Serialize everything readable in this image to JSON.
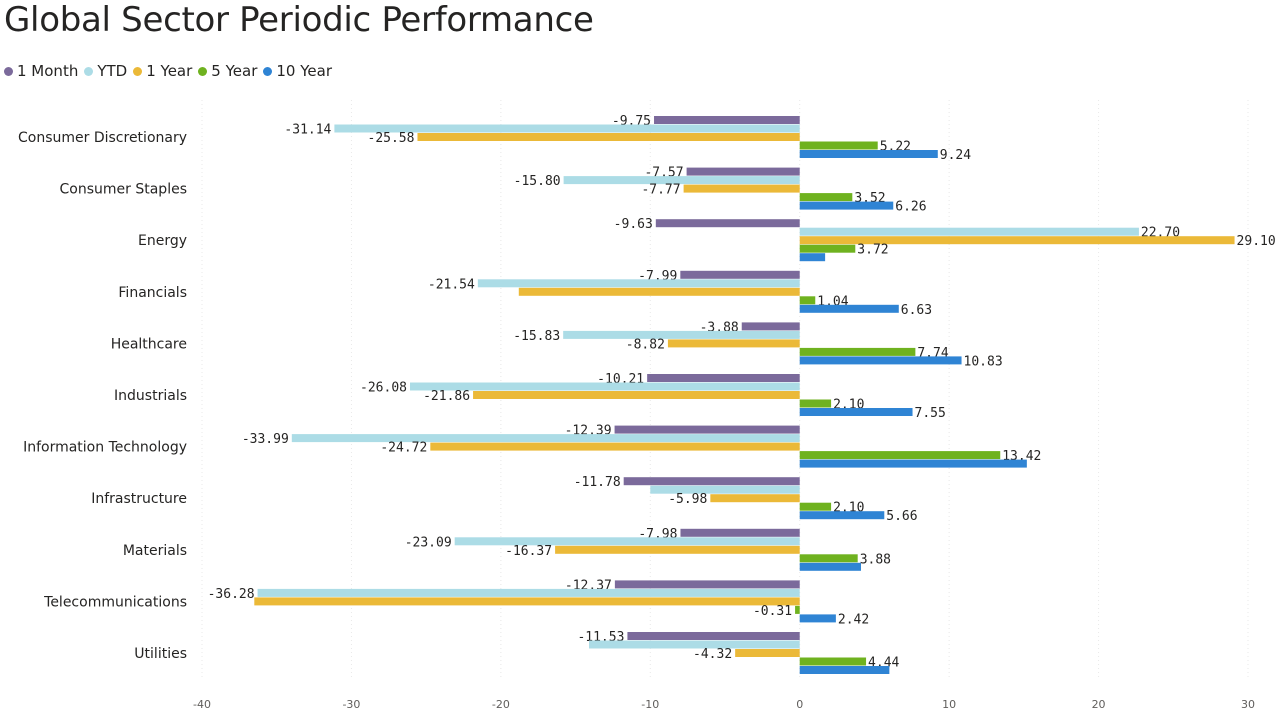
{
  "title": "Global Sector Periodic Performance",
  "chart_data": {
    "type": "bar",
    "orientation": "horizontal",
    "title": "Global Sector Periodic Performance",
    "xlabel": "",
    "ylabel": "",
    "xlim": [
      -40,
      30
    ],
    "xticks": [
      -40,
      -30,
      -20,
      -10,
      0,
      10,
      20,
      30
    ],
    "legend_position": "top-left",
    "grid": true,
    "categories": [
      "Consumer Discretionary",
      "Consumer Staples",
      "Energy",
      "Financials",
      "Healthcare",
      "Industrials",
      "Information Technology",
      "Infrastructure",
      "Materials",
      "Telecommunications",
      "Utilities"
    ],
    "series": [
      {
        "name": "1 Month",
        "color": "#7b6a9b",
        "values": [
          -9.75,
          -7.57,
          -9.63,
          -7.99,
          -3.88,
          -10.21,
          -12.39,
          -11.78,
          -7.98,
          -12.37,
          -11.53
        ],
        "labels": [
          "-9.75",
          "-7.57",
          "-9.63",
          "-7.99",
          "-3.88",
          "-10.21",
          "-12.39",
          "-11.78",
          "-7.98",
          "-12.37",
          "-11.53"
        ]
      },
      {
        "name": "YTD",
        "color": "#acdce6",
        "values": [
          -31.14,
          -15.8,
          22.7,
          -21.54,
          -15.83,
          -26.08,
          -33.99,
          -10.0,
          -23.09,
          -36.28,
          -14.1
        ],
        "labels": [
          "-31.14",
          "-15.80",
          "22.70",
          "-21.54",
          "-15.83",
          "-26.08",
          "-33.99",
          "",
          "-23.09",
          "-36.28",
          ""
        ]
      },
      {
        "name": "1 Year",
        "color": "#ebb938",
        "values": [
          -25.58,
          -7.77,
          29.1,
          -18.8,
          -8.82,
          -21.86,
          -24.72,
          -5.98,
          -16.37,
          -36.5,
          -4.32
        ],
        "labels": [
          "-25.58",
          "-7.77",
          "29.10",
          "",
          "-8.82",
          "-21.86",
          "-24.72",
          "-5.98",
          "-16.37",
          "",
          "-4.32"
        ]
      },
      {
        "name": "5 Year",
        "color": "#6fb21f",
        "values": [
          5.22,
          3.52,
          3.72,
          1.04,
          7.74,
          2.1,
          13.42,
          2.1,
          3.88,
          -0.31,
          4.44
        ],
        "labels": [
          "5.22",
          "3.52",
          "3.72",
          "1.04",
          "7.74",
          "2.10",
          "13.42",
          "2.10",
          "3.88",
          "-0.31",
          "4.44"
        ]
      },
      {
        "name": "10 Year",
        "color": "#2f84d4",
        "values": [
          9.24,
          6.26,
          1.7,
          6.63,
          10.83,
          7.55,
          15.2,
          5.66,
          4.1,
          2.42,
          6.0
        ],
        "labels": [
          "9.24",
          "6.26",
          "",
          "6.63",
          "10.83",
          "7.55",
          "",
          "5.66",
          "",
          "2.42",
          ""
        ]
      }
    ]
  }
}
